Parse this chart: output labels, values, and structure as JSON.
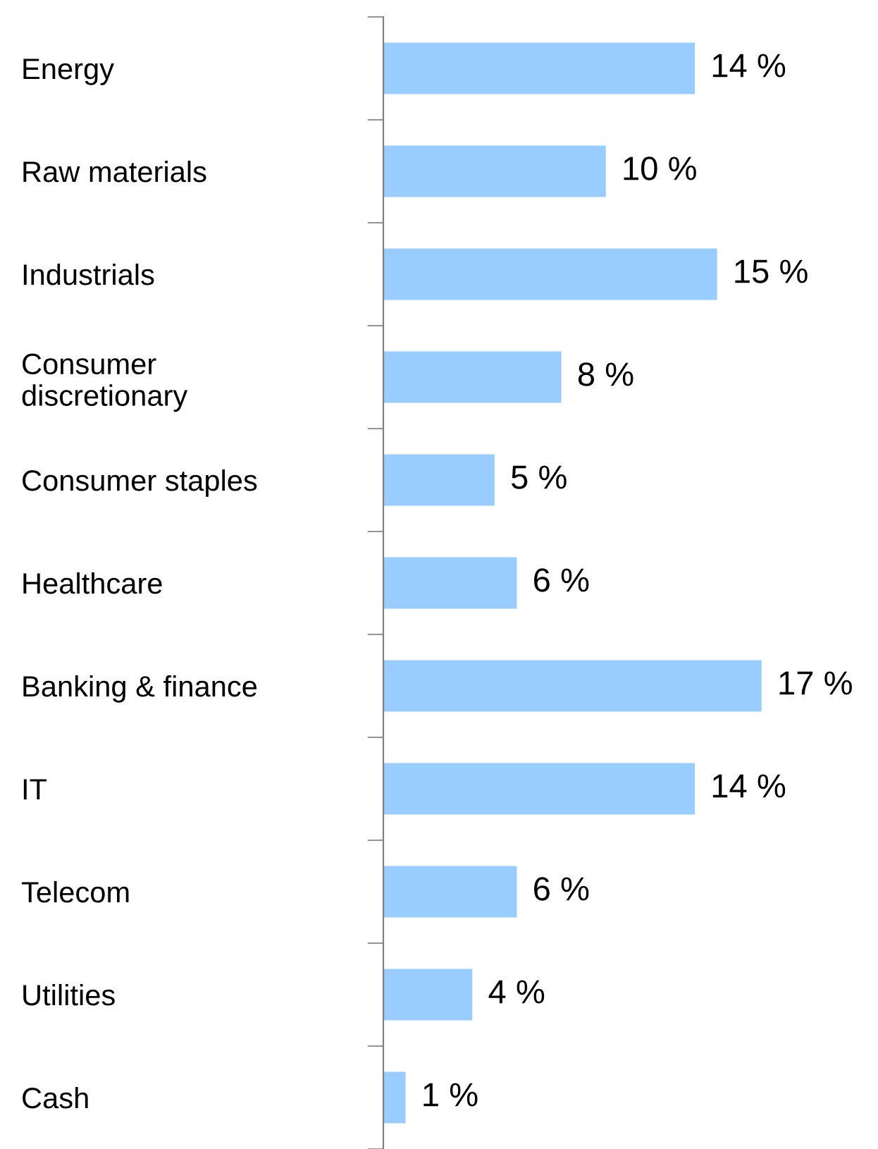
{
  "chart_data": {
    "type": "bar",
    "orientation": "horizontal",
    "categories": [
      "Energy",
      "Raw materials",
      "Industrials",
      "Consumer\ndiscretionary",
      "Consumer staples",
      "Healthcare",
      "Banking & finance",
      "IT",
      "Telecom",
      "Utilities",
      "Cash"
    ],
    "values": [
      14,
      10,
      15,
      8,
      5,
      6,
      17,
      14,
      6,
      4,
      1
    ],
    "value_labels": [
      "14 %",
      "10 %",
      "15 %",
      "8 %",
      "5 %",
      "6 %",
      "17 %",
      "14 %",
      "6 %",
      "4 %",
      "1 %"
    ],
    "color": "#99ccff",
    "grid": false,
    "legend": false,
    "tick_labels": "y"
  }
}
